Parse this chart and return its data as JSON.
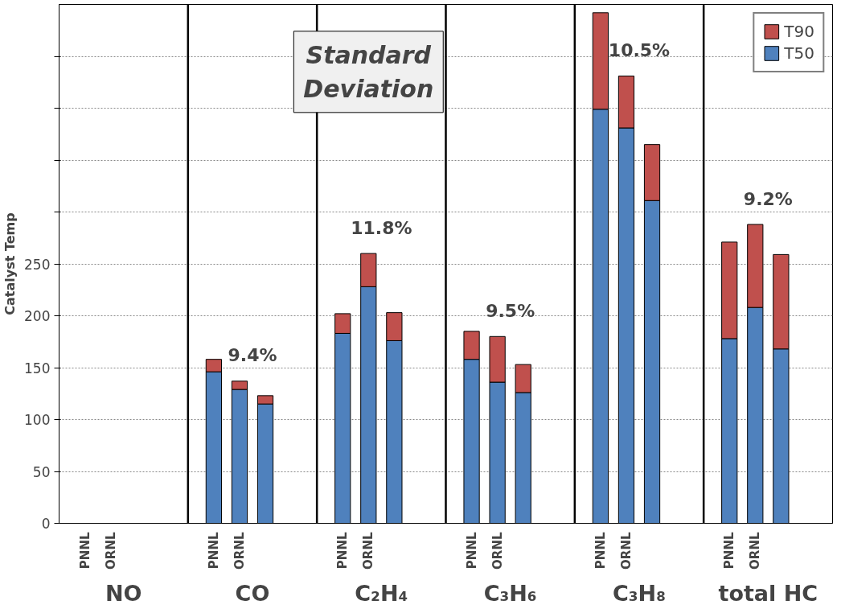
{
  "chart_data": {
    "type": "bar",
    "stacked": true,
    "categories": [
      "PNNL",
      "ORNL",
      null,
      null,
      "PNNL",
      "ORNL",
      null,
      null,
      "PNNL",
      "ORNL",
      null,
      null,
      "PNNL",
      "ORNL",
      null,
      null,
      "PNNL",
      "ORNL",
      null,
      null,
      "PNNL",
      "ORNL",
      null,
      null
    ],
    "series": [
      {
        "name": "T50",
        "color": "#4f81bd",
        "values": [
          null,
          null,
          null,
          null,
          146,
          129,
          115,
          null,
          183,
          228,
          176,
          null,
          158,
          136,
          126,
          null,
          399,
          381,
          311,
          null,
          178,
          208,
          168,
          null
        ]
      },
      {
        "name": "T90",
        "color": "#c0504d",
        "values": [
          null,
          null,
          null,
          null,
          12,
          8,
          8,
          null,
          19,
          32,
          27,
          null,
          27,
          44,
          27,
          null,
          93,
          50,
          54,
          null,
          93,
          80,
          91,
          null
        ]
      }
    ],
    "ylabel": "Catalyst Temp",
    "ylim": [
      0,
      500
    ],
    "yticks": [
      0,
      50,
      100,
      150,
      200,
      250,
      {
        "value": 300,
        "label": null
      },
      {
        "value": 350,
        "label": null
      },
      {
        "value": 400,
        "label": null
      },
      {
        "value": 450,
        "label": null
      }
    ],
    "grid": "y",
    "line_style": "dotted",
    "legend": "top right",
    "annotations": [
      "NO",
      "CO",
      "C₂H₄",
      "C₃H₆",
      "C₃H₈",
      "total HC",
      "Standard Deviation",
      "9.4%",
      "11.8%",
      "9.5%",
      "10.5%",
      "9.2%"
    ]
  }
}
